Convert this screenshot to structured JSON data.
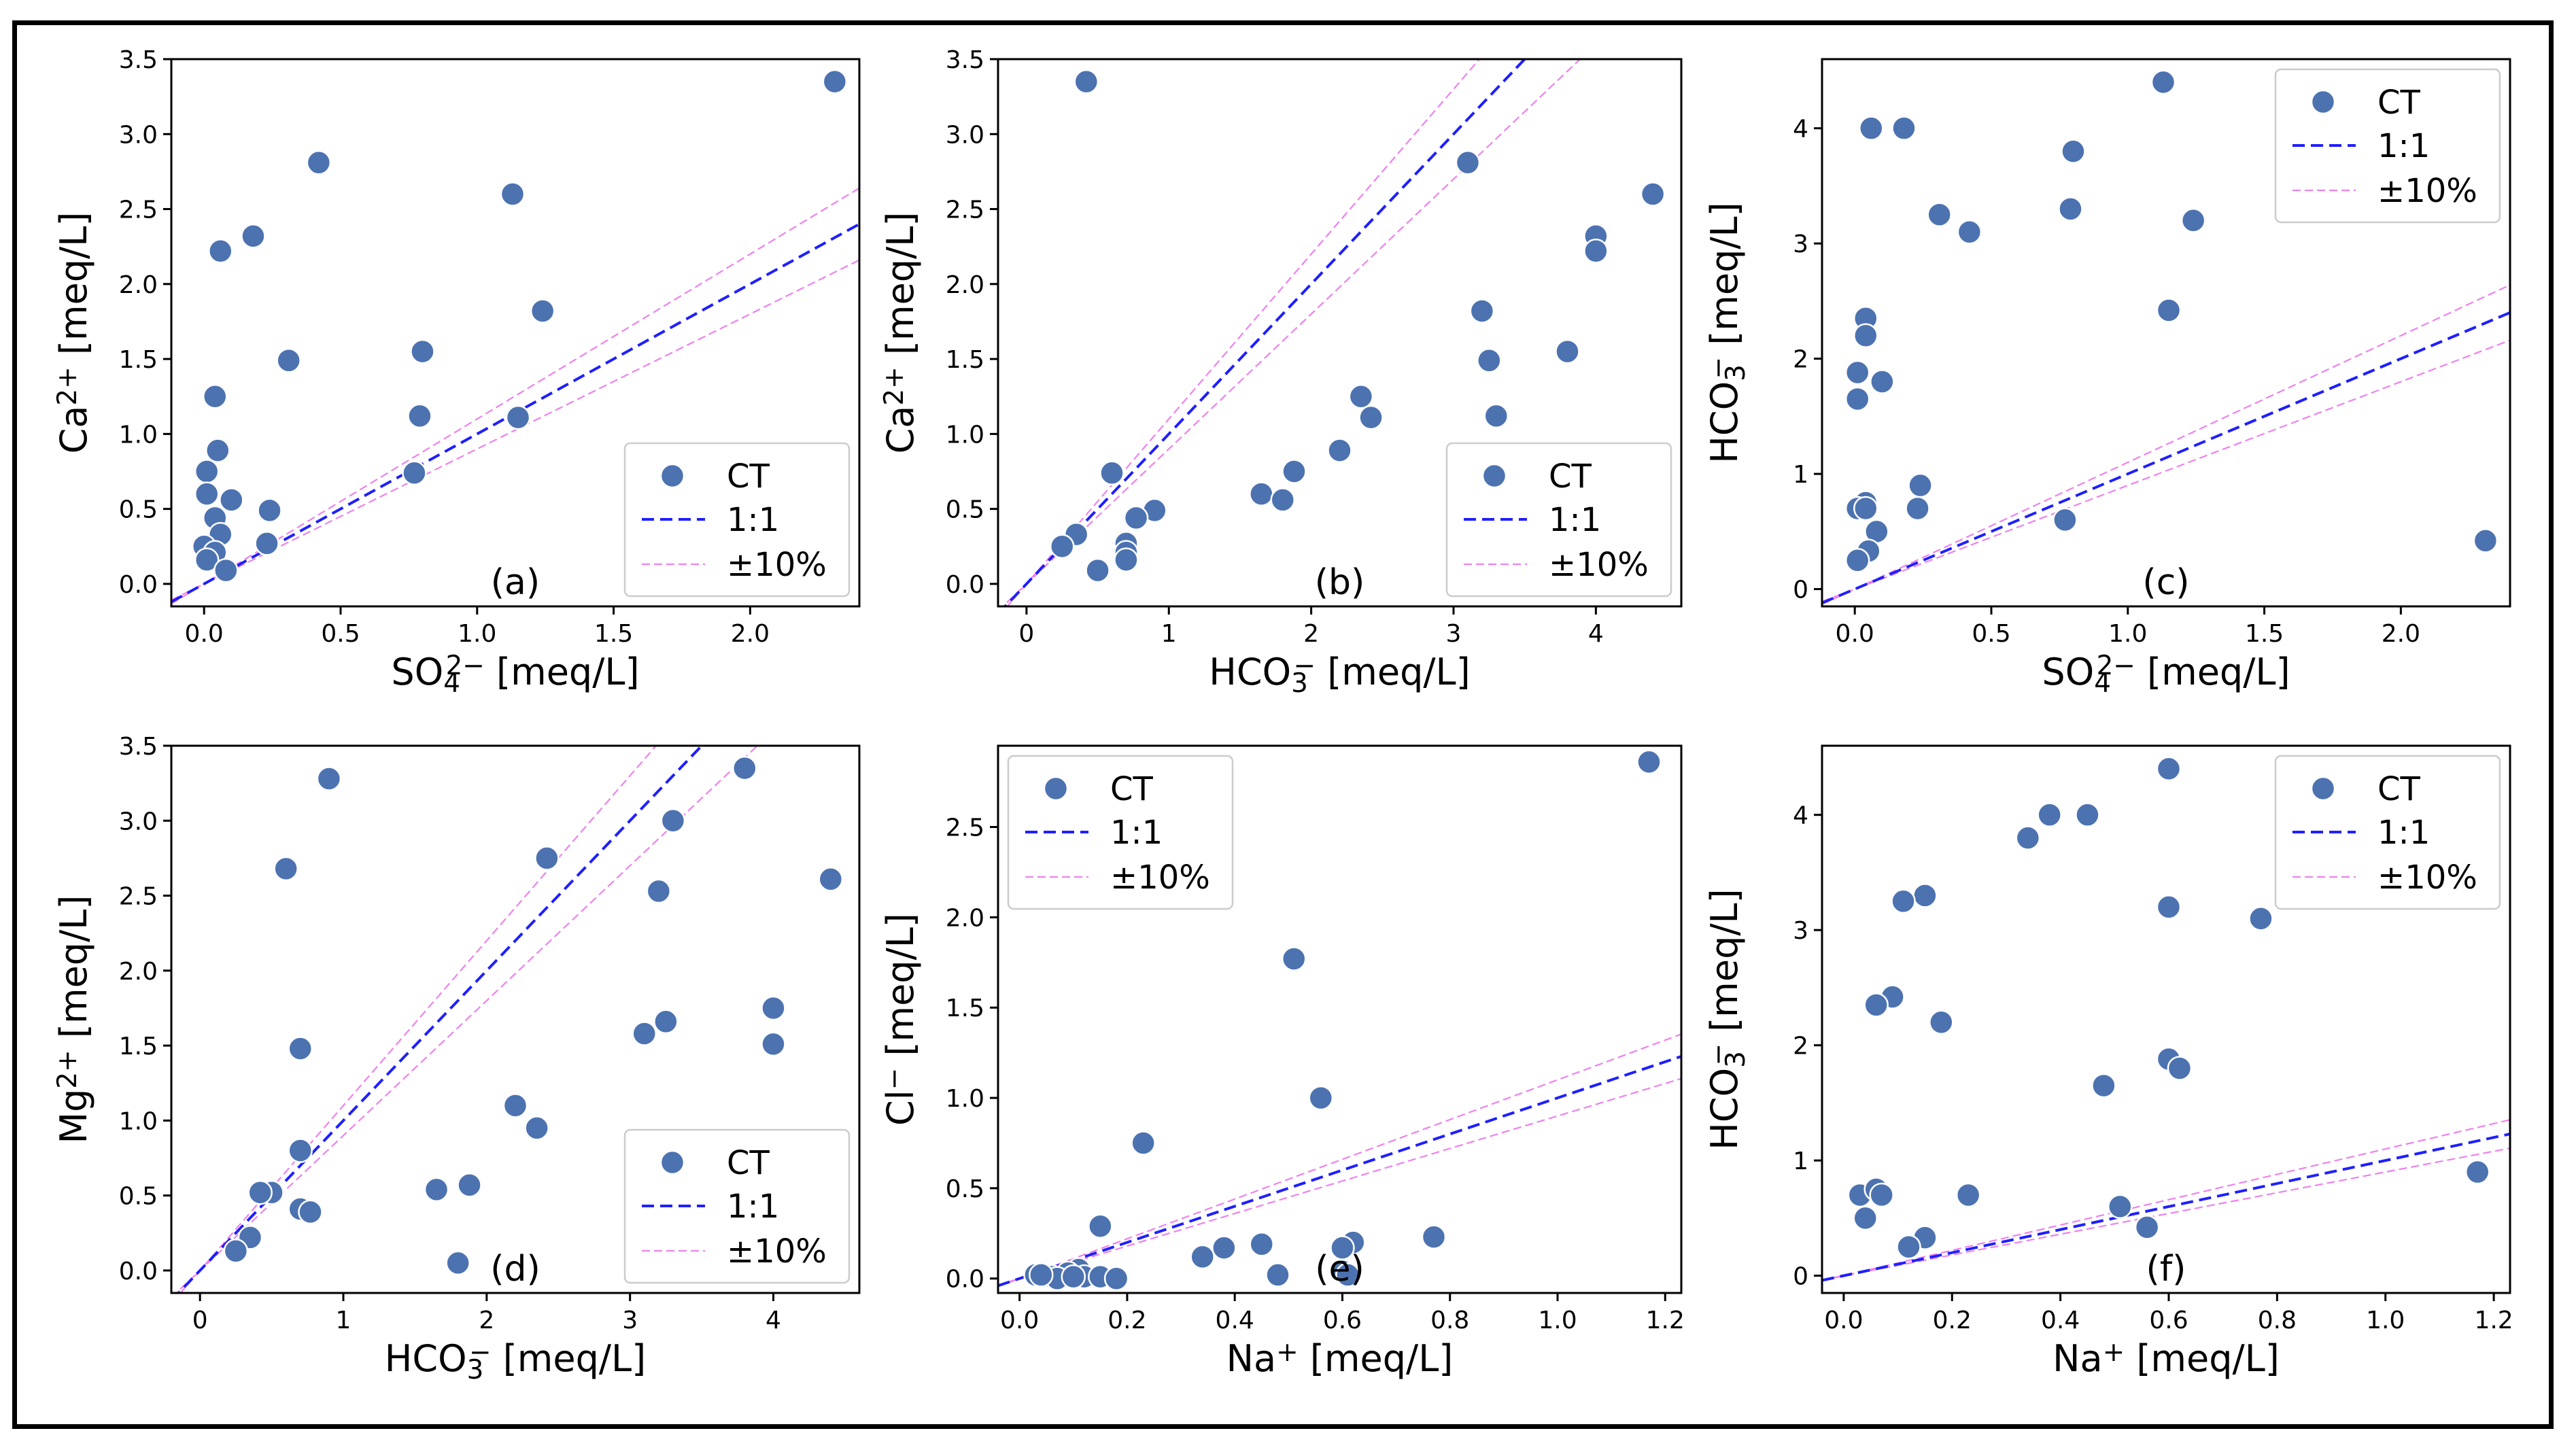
{
  "figure": {
    "legend_labels": {
      "points": "CT",
      "one_to_one": "1:1",
      "band": "±10%"
    },
    "colors": {
      "points": "#4C72B0",
      "one_to_one": "#1f1fff",
      "band": "#ee82ee"
    }
  },
  "chart_data": [
    {
      "id": "a",
      "type": "scatter",
      "panel_label": "(a)",
      "xlabel": "SO42− [meq/L]",
      "xlabel_base": "SO",
      "xlabel_sub": "4",
      "xlabel_sup": "2−",
      "xlabel_tail": " [meq/L]",
      "ylabel": "Ca2+ [meq/L]",
      "ylabel_base": "Ca",
      "ylabel_sub": "",
      "ylabel_sup": "2+",
      "ylabel_tail": " [meq/L]",
      "xlim": [
        -0.12,
        2.4
      ],
      "ylim": [
        -0.15,
        3.5
      ],
      "xticks": [
        0.0,
        0.5,
        1.0,
        1.5,
        2.0
      ],
      "xtick_labels": [
        "0.0",
        "0.5",
        "1.0",
        "1.5",
        "2.0"
      ],
      "yticks": [
        0.0,
        0.5,
        1.0,
        1.5,
        2.0,
        2.5,
        3.0,
        3.5
      ],
      "ytick_labels": [
        "0.0",
        "0.5",
        "1.0",
        "1.5",
        "2.0",
        "2.5",
        "3.0",
        "3.5"
      ],
      "legend_position": "lower-right",
      "x": [
        2.31,
        0.42,
        1.13,
        0.18,
        0.06,
        1.24,
        0.31,
        0.8,
        0.04,
        0.79,
        1.15,
        0.05,
        0.77,
        0.01,
        0.01,
        0.1,
        0.04,
        0.24,
        0.06,
        0.0,
        0.23,
        0.04,
        0.01,
        0.08
      ],
      "y": [
        3.35,
        2.81,
        2.6,
        2.32,
        2.22,
        1.82,
        1.49,
        1.55,
        1.25,
        1.12,
        1.11,
        0.89,
        0.74,
        0.75,
        0.6,
        0.56,
        0.44,
        0.49,
        0.33,
        0.25,
        0.27,
        0.21,
        0.16,
        0.09
      ]
    },
    {
      "id": "b",
      "type": "scatter",
      "panel_label": "(b)",
      "xlabel": "HCO3− [meq/L]",
      "xlabel_base": "HCO",
      "xlabel_sub": "3",
      "xlabel_sup": "−",
      "xlabel_tail": " [meq/L]",
      "ylabel": "Ca2+ [meq/L]",
      "ylabel_base": "Ca",
      "ylabel_sub": "",
      "ylabel_sup": "2+",
      "ylabel_tail": " [meq/L]",
      "xlim": [
        -0.2,
        4.6
      ],
      "ylim": [
        -0.15,
        3.5
      ],
      "xticks": [
        0,
        1,
        2,
        3,
        4
      ],
      "xtick_labels": [
        "0",
        "1",
        "2",
        "3",
        "4"
      ],
      "yticks": [
        0.0,
        0.5,
        1.0,
        1.5,
        2.0,
        2.5,
        3.0,
        3.5
      ],
      "ytick_labels": [
        "0.0",
        "0.5",
        "1.0",
        "1.5",
        "2.0",
        "2.5",
        "3.0",
        "3.5"
      ],
      "legend_position": "lower-right",
      "x": [
        0.42,
        3.1,
        4.4,
        4.0,
        4.0,
        3.2,
        3.8,
        3.25,
        2.35,
        2.42,
        3.3,
        2.2,
        1.88,
        0.6,
        1.65,
        1.8,
        0.9,
        0.77,
        0.35,
        0.25,
        0.7,
        0.7,
        0.7,
        0.5
      ],
      "y": [
        3.35,
        2.81,
        2.6,
        2.32,
        2.22,
        1.82,
        1.55,
        1.49,
        1.25,
        1.11,
        1.12,
        0.89,
        0.75,
        0.74,
        0.6,
        0.56,
        0.49,
        0.44,
        0.33,
        0.25,
        0.27,
        0.21,
        0.16,
        0.09
      ]
    },
    {
      "id": "c",
      "type": "scatter",
      "panel_label": "(c)",
      "xlabel": "SO42− [meq/L]",
      "xlabel_base": "SO",
      "xlabel_sub": "4",
      "xlabel_sup": "2−",
      "xlabel_tail": " [meq/L]",
      "ylabel": "HCO3− [meq/L]",
      "ylabel_base": "HCO",
      "ylabel_sub": "3",
      "ylabel_sup": "−",
      "ylabel_tail": " [meq/L]",
      "xlim": [
        -0.12,
        2.4
      ],
      "ylim": [
        -0.15,
        4.6
      ],
      "xticks": [
        0.0,
        0.5,
        1.0,
        1.5,
        2.0
      ],
      "xtick_labels": [
        "0.0",
        "0.5",
        "1.0",
        "1.5",
        "2.0"
      ],
      "yticks": [
        0,
        1,
        2,
        3,
        4
      ],
      "ytick_labels": [
        "0",
        "1",
        "2",
        "3",
        "4"
      ],
      "legend_position": "top-right",
      "x": [
        1.13,
        0.06,
        0.18,
        0.8,
        0.79,
        0.31,
        1.24,
        0.42,
        1.15,
        0.04,
        0.04,
        0.01,
        0.1,
        0.01,
        0.24,
        0.04,
        0.01,
        0.04,
        0.23,
        0.77,
        0.08,
        0.05,
        0.01,
        2.31
      ],
      "y": [
        4.4,
        4.0,
        4.0,
        3.8,
        3.3,
        3.25,
        3.2,
        3.1,
        2.42,
        2.35,
        2.2,
        1.88,
        1.8,
        1.65,
        0.9,
        0.75,
        0.7,
        0.7,
        0.7,
        0.6,
        0.5,
        0.33,
        0.25,
        0.42
      ]
    },
    {
      "id": "d",
      "type": "scatter",
      "panel_label": "(d)",
      "xlabel": "HCO3− [meq/L]",
      "xlabel_base": "HCO",
      "xlabel_sub": "3",
      "xlabel_sup": "−",
      "xlabel_tail": " [meq/L]",
      "ylabel": "Mg2+ [meq/L]",
      "ylabel_base": "Mg",
      "ylabel_sub": "",
      "ylabel_sup": "2+",
      "ylabel_tail": " [meq/L]",
      "xlim": [
        -0.2,
        4.6
      ],
      "ylim": [
        -0.15,
        3.5
      ],
      "xticks": [
        0,
        1,
        2,
        3,
        4
      ],
      "xtick_labels": [
        "0",
        "1",
        "2",
        "3",
        "4"
      ],
      "yticks": [
        0.0,
        0.5,
        1.0,
        1.5,
        2.0,
        2.5,
        3.0,
        3.5
      ],
      "ytick_labels": [
        "0.0",
        "0.5",
        "1.0",
        "1.5",
        "2.0",
        "2.5",
        "3.0",
        "3.5"
      ],
      "legend_position": "lower-right",
      "x": [
        3.8,
        0.9,
        3.3,
        2.42,
        0.6,
        4.4,
        3.2,
        4.0,
        4.0,
        3.25,
        3.1,
        0.7,
        2.2,
        2.35,
        0.7,
        1.88,
        1.65,
        0.5,
        0.42,
        0.7,
        0.77,
        0.35,
        0.25,
        1.8
      ],
      "y": [
        3.35,
        3.28,
        3.0,
        2.75,
        2.68,
        2.61,
        2.53,
        1.75,
        1.51,
        1.66,
        1.58,
        1.48,
        1.1,
        0.95,
        0.8,
        0.57,
        0.54,
        0.52,
        0.52,
        0.41,
        0.39,
        0.22,
        0.13,
        0.05
      ]
    },
    {
      "id": "e",
      "type": "scatter",
      "panel_label": "(e)",
      "xlabel": "Na+ [meq/L]",
      "xlabel_base": "Na",
      "xlabel_sub": "",
      "xlabel_sup": "+",
      "xlabel_tail": " [meq/L]",
      "ylabel": "Cl− [meq/L]",
      "ylabel_base": "Cl",
      "ylabel_sub": "",
      "ylabel_sup": "−",
      "ylabel_tail": " [meq/L]",
      "xlim": [
        -0.04,
        1.23
      ],
      "ylim": [
        -0.08,
        2.95
      ],
      "xticks": [
        0.0,
        0.2,
        0.4,
        0.6,
        0.8,
        1.0,
        1.2
      ],
      "xtick_labels": [
        "0.0",
        "0.2",
        "0.4",
        "0.6",
        "0.8",
        "1.0",
        "1.2"
      ],
      "yticks": [
        0.0,
        0.5,
        1.0,
        1.5,
        2.0,
        2.5
      ],
      "ytick_labels": [
        "0.0",
        "0.5",
        "1.0",
        "1.5",
        "2.0",
        "2.5"
      ],
      "legend_position": "top-left",
      "x": [
        1.17,
        0.51,
        0.56,
        0.23,
        0.15,
        0.77,
        0.62,
        0.6,
        0.45,
        0.38,
        0.34,
        0.11,
        0.09,
        0.06,
        0.03,
        0.12,
        0.15,
        0.18,
        0.07,
        0.48,
        0.6,
        0.1,
        0.61,
        0.04
      ],
      "y": [
        2.86,
        1.77,
        1.0,
        0.75,
        0.29,
        0.23,
        0.2,
        0.17,
        0.19,
        0.17,
        0.12,
        0.05,
        0.03,
        0.01,
        0.02,
        0.01,
        0.01,
        0.0,
        0.0,
        0.02,
        0.04,
        0.01,
        0.02,
        0.02
      ]
    },
    {
      "id": "f",
      "type": "scatter",
      "panel_label": "(f)",
      "xlabel": "Na+ [meq/L]",
      "xlabel_base": "Na",
      "xlabel_sub": "",
      "xlabel_sup": "+",
      "xlabel_tail": " [meq/L]",
      "ylabel": "HCO3− [meq/L]",
      "ylabel_base": "HCO",
      "ylabel_sub": "3",
      "ylabel_sup": "−",
      "ylabel_tail": " [meq/L]",
      "xlim": [
        -0.04,
        1.23
      ],
      "ylim": [
        -0.15,
        4.6
      ],
      "xticks": [
        0.0,
        0.2,
        0.4,
        0.6,
        0.8,
        1.0,
        1.2
      ],
      "xtick_labels": [
        "0.0",
        "0.2",
        "0.4",
        "0.6",
        "0.8",
        "1.0",
        "1.2"
      ],
      "yticks": [
        0,
        1,
        2,
        3,
        4
      ],
      "ytick_labels": [
        "0",
        "1",
        "2",
        "3",
        "4"
      ],
      "legend_position": "top-right",
      "x": [
        0.6,
        0.38,
        0.45,
        0.34,
        0.15,
        0.11,
        0.6,
        0.77,
        0.09,
        0.06,
        0.18,
        0.48,
        0.6,
        0.62,
        0.03,
        0.06,
        0.07,
        0.23,
        0.51,
        0.04,
        0.56,
        0.15,
        0.12,
        1.17
      ],
      "y": [
        4.4,
        4.0,
        4.0,
        3.8,
        3.3,
        3.25,
        3.2,
        3.1,
        2.42,
        2.35,
        2.2,
        1.65,
        1.88,
        1.8,
        0.7,
        0.75,
        0.7,
        0.7,
        0.6,
        0.5,
        0.42,
        0.33,
        0.25,
        0.9
      ]
    }
  ]
}
